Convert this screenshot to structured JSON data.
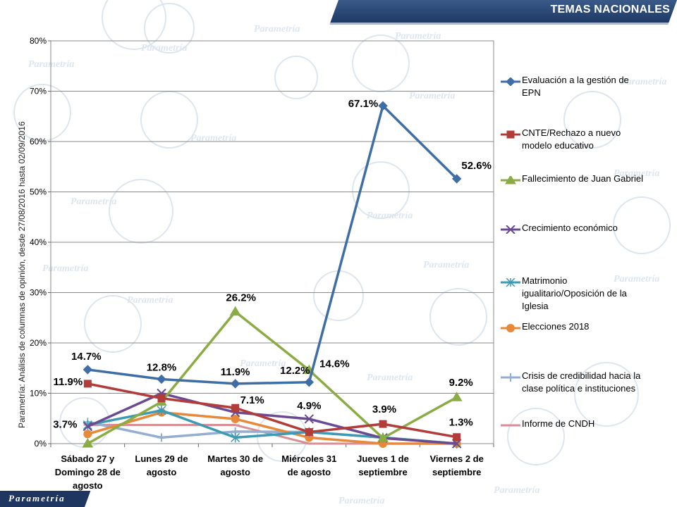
{
  "header": {
    "title": "TEMAS NACIONALES"
  },
  "side_note": "Parametría: Análisis de columnas de opinión, desde 27/08/2016 hasta  02/09/2016",
  "footer": {
    "brand": "Parametría"
  },
  "watermark": {
    "text": "Parametría"
  },
  "chart_data": {
    "type": "line",
    "categories": [
      "Sábado 27 y Domingo 28 de agosto",
      "Lunes 29 de agosto",
      "Martes 30 de agosto",
      "Miércoles 31 de agosto",
      "Jueves 1 de septiembre",
      "Viernes 2 de septiembre"
    ],
    "category_lines": [
      [
        "Sábado 27 y",
        "Domingo 28 de",
        "agosto"
      ],
      [
        "Lunes 29 de",
        "agosto"
      ],
      [
        "Martes 30 de",
        "agosto"
      ],
      [
        "Miércoles 31",
        "de agosto"
      ],
      [
        "Jueves 1 de",
        "septiembre"
      ],
      [
        "Viernes 2 de",
        "septiembre"
      ]
    ],
    "ylim": [
      0,
      80
    ],
    "yticks": [
      "0%",
      "10%",
      "20%",
      "30%",
      "40%",
      "50%",
      "60%",
      "70%",
      "80%"
    ],
    "grid": true,
    "legend_position": "right",
    "series": [
      {
        "name": "Evaluación a la gestión de EPN",
        "name_lines": [
          "Evaluación a la gestión de",
          "EPN"
        ],
        "color": "#3f6ea5",
        "marker": "diamond",
        "values": [
          14.7,
          12.8,
          11.9,
          12.2,
          67.1,
          52.6
        ]
      },
      {
        "name": "CNTE/Rechazo a nuevo modelo educativo",
        "name_lines": [
          "CNTE/Rechazo a nuevo",
          "modelo educativo"
        ],
        "color": "#b23c3a",
        "marker": "square",
        "values": [
          11.9,
          9.0,
          7.1,
          2.3,
          3.9,
          1.3
        ]
      },
      {
        "name": "Fallecimiento de Juan Gabriel",
        "name_lines": [
          "Fallecimiento de Juan Gabriel"
        ],
        "color": "#8bab44",
        "marker": "triangle",
        "values": [
          0.0,
          8.3,
          26.2,
          14.6,
          1.1,
          9.2
        ]
      },
      {
        "name": "Crecimiento económico",
        "name_lines": [
          "Crecimiento económico"
        ],
        "color": "#6a4a91",
        "marker": "x",
        "values": [
          3.4,
          10.0,
          6.2,
          4.9,
          1.1,
          0.0
        ]
      },
      {
        "name": "Matrimonio igualitario/Oposición de la Iglesia",
        "name_lines": [
          "Matrimonio",
          "igualitario/Oposición de la",
          "Iglesia"
        ],
        "color": "#3c9bb2",
        "marker": "star",
        "values": [
          3.7,
          6.6,
          1.2,
          2.3,
          1.2,
          0.0
        ]
      },
      {
        "name": "Elecciones 2018",
        "name_lines": [
          "Elecciones 2018"
        ],
        "color": "#e8893a",
        "marker": "circle",
        "values": [
          1.9,
          6.2,
          4.9,
          1.2,
          0.0,
          0.0
        ]
      },
      {
        "name": "Crisis de credibilidad hacia la clase política e instituciones",
        "name_lines": [
          "Crisis de credibilidad hacia la",
          "clase política e instituciones"
        ],
        "color": "#93aed1",
        "marker": "plus",
        "values": [
          4.3,
          1.2,
          2.4,
          2.3,
          1.2,
          0.0
        ]
      },
      {
        "name": "Informe de CNDH",
        "name_lines": [
          "Informe de CNDH"
        ],
        "color": "#d98e94",
        "marker": "line",
        "values": [
          3.7,
          3.7,
          3.7,
          0.0,
          0.0,
          0.0
        ]
      }
    ],
    "data_labels": [
      {
        "text": "14.7%",
        "series": 0,
        "index": 0,
        "dx": -2,
        "dy": -14
      },
      {
        "text": "12.8%",
        "series": 0,
        "index": 1,
        "dx": 0,
        "dy": -12
      },
      {
        "text": "11.9%",
        "series": 0,
        "index": 2,
        "dx": 0,
        "dy": -12
      },
      {
        "text": "12.2%",
        "series": 0,
        "index": 3,
        "dx": -20,
        "dy": -12
      },
      {
        "text": "67.1%",
        "series": 0,
        "index": 4,
        "dx": -28,
        "dy": 2
      },
      {
        "text": "52.6%",
        "series": 0,
        "index": 5,
        "dx": 28,
        "dy": -14
      },
      {
        "text": "11.9%",
        "series": 1,
        "index": 0,
        "dx": -28,
        "dy": 2
      },
      {
        "text": "7.1%",
        "series": 1,
        "index": 2,
        "dx": 24,
        "dy": -6
      },
      {
        "text": "3.9%",
        "series": 1,
        "index": 4,
        "dx": 2,
        "dy": -16
      },
      {
        "text": "1.3%",
        "series": 1,
        "index": 5,
        "dx": 6,
        "dy": -16
      },
      {
        "text": "26.2%",
        "series": 2,
        "index": 2,
        "dx": 8,
        "dy": -15
      },
      {
        "text": "14.6%",
        "series": 2,
        "index": 3,
        "dx": 36,
        "dy": -4
      },
      {
        "text": "9.2%",
        "series": 2,
        "index": 5,
        "dx": 6,
        "dy": -16
      },
      {
        "text": "4.9%",
        "series": 3,
        "index": 3,
        "dx": 0,
        "dy": -14
      },
      {
        "text": "3.7%",
        "series": 4,
        "index": 0,
        "dx": -32,
        "dy": 4
      }
    ]
  }
}
